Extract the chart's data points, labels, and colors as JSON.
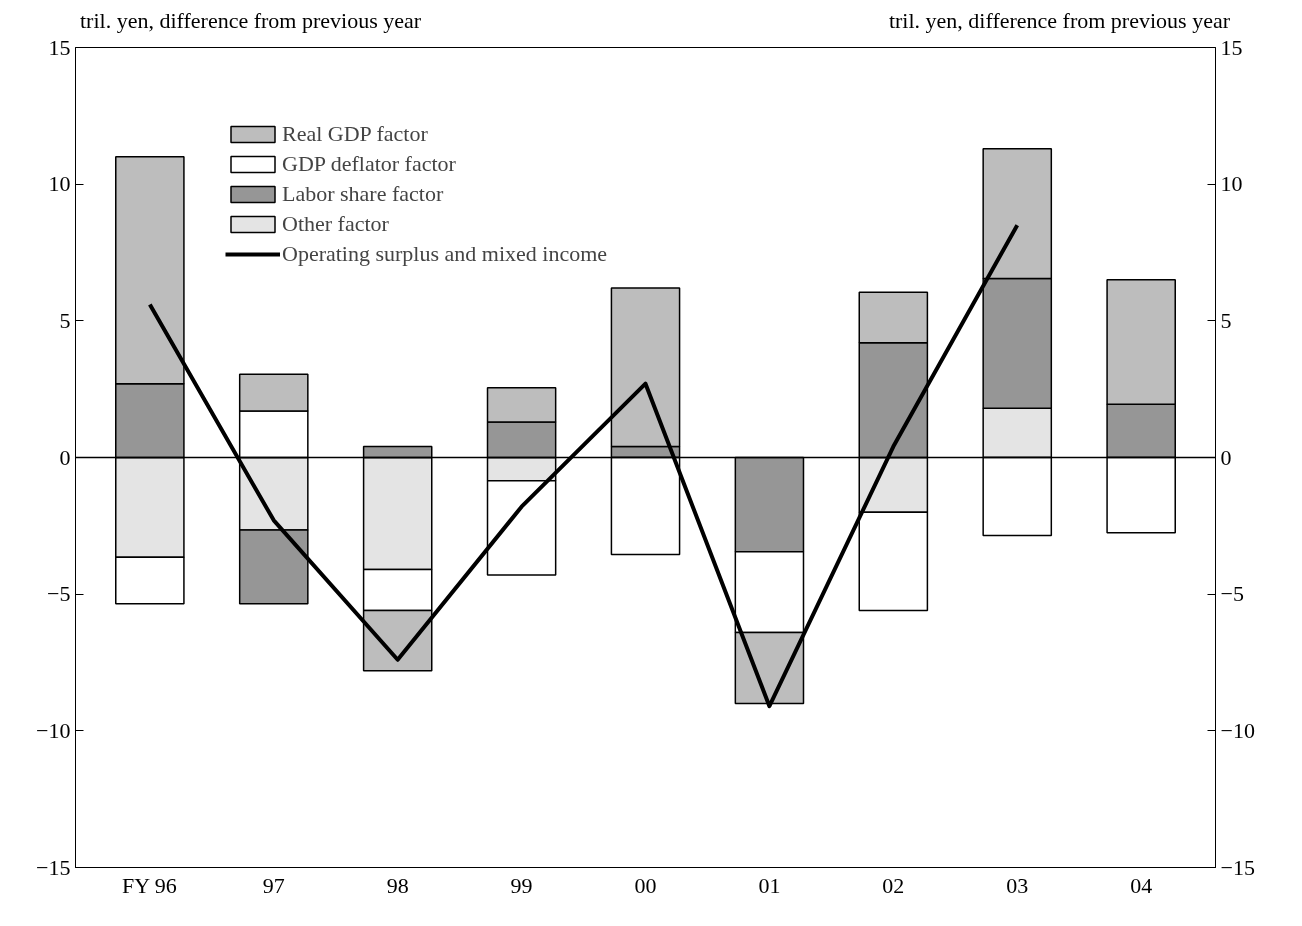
{
  "chart_data": {
    "type": "bar",
    "stacked": true,
    "ylabel": "tril. yen, difference from previous year",
    "y2label": "tril. yen, difference from previous year",
    "categories": [
      "FY 96",
      "97",
      "98",
      "99",
      "00",
      "01",
      "02",
      "03",
      "04"
    ],
    "series": [
      {
        "name": "Other factor",
        "color": "#e4e4e4",
        "values": [
          -3.65,
          -2.65,
          -4.1,
          -0.85,
          null,
          null,
          -2.0,
          1.8,
          null
        ]
      },
      {
        "name": "Labor share factor",
        "color": "#969696",
        "values": [
          2.7,
          -2.7,
          0.4,
          1.3,
          0.4,
          -3.45,
          4.2,
          4.75,
          1.95
        ]
      },
      {
        "name": "GDP deflator factor",
        "color": "#ffffff",
        "values": [
          -1.7,
          1.7,
          -1.5,
          -3.45,
          -3.55,
          -2.95,
          -3.6,
          -2.85,
          -2.75
        ]
      },
      {
        "name": "Real GDP factor",
        "color": "#bdbdbd",
        "values": [
          8.3,
          1.35,
          -2.2,
          1.25,
          5.8,
          -2.6,
          1.85,
          4.75,
          4.55
        ]
      },
      {
        "name": "Operating surplus and mixed income",
        "type": "line",
        "color": "#000000",
        "values": [
          5.6,
          -2.3,
          -7.4,
          -1.8,
          2.7,
          -9.1,
          0.4,
          8.5,
          null
        ]
      }
    ],
    "ylim": [
      -15,
      15
    ],
    "yticks": [
      -15,
      -10,
      -5,
      0,
      5,
      10,
      15
    ],
    "y2lim": [
      -15,
      15
    ],
    "y2ticks": [
      -15,
      -10,
      -5,
      0,
      5,
      10,
      15
    ],
    "ref_lines": [
      {
        "axis": "y",
        "value": 0,
        "color": "#000000"
      }
    ],
    "legend": "top left",
    "grid": false
  }
}
